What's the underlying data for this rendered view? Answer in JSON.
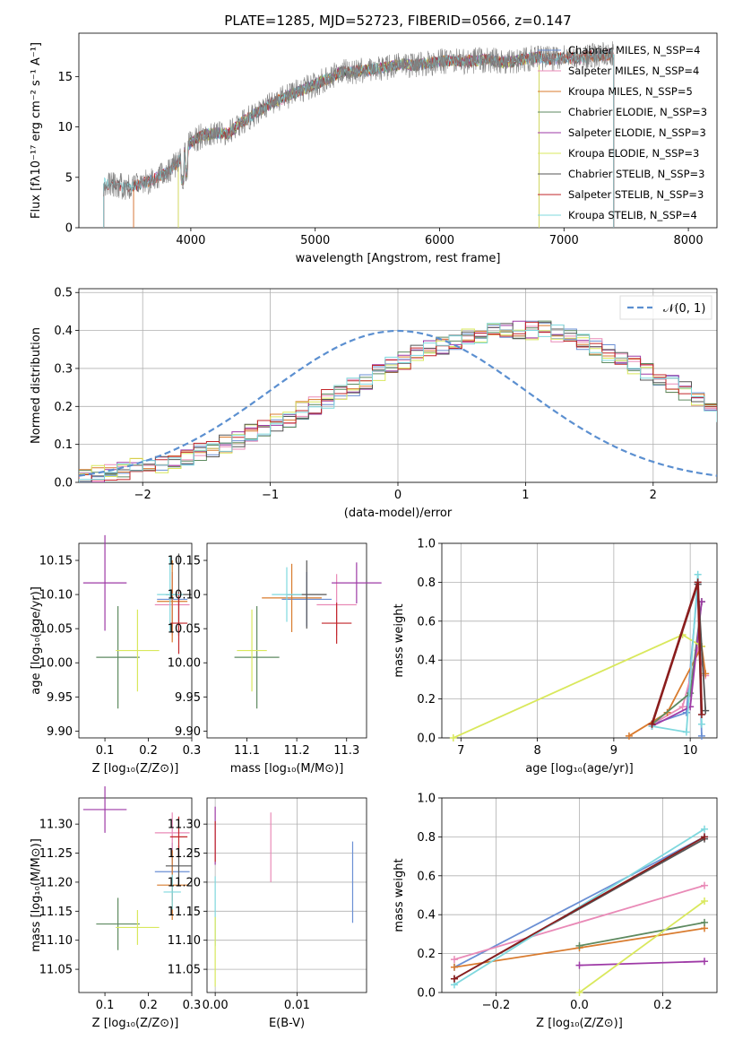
{
  "chart_data": [
    {
      "type": "line",
      "title": "PLATE=1285, MJD=52723, FIBERID=0566, z=0.147",
      "xlabel": "wavelength [Angstrom, rest frame]",
      "ylabel": "Flux [fλ10⁻¹⁷ erg cm⁻² s⁻¹ A⁻¹]",
      "xlim": [
        3100,
        8230
      ],
      "ylim": [
        0,
        19.3
      ],
      "xticks": [
        4000,
        5000,
        6000,
        7000,
        8000
      ],
      "yticks": [
        0,
        5,
        10,
        15
      ],
      "data_color": "#808080",
      "spectrum_x": [
        3300,
        3400,
        3500,
        3600,
        3700,
        3800,
        3900,
        4000,
        4100,
        4200,
        4300,
        4400,
        4500,
        4600,
        4700,
        4800,
        4900,
        5000,
        5100,
        5200,
        5300,
        5400,
        5500,
        5600,
        5700,
        5800,
        5900,
        6000,
        6100,
        6200,
        6300,
        6400,
        6500,
        6600,
        6700,
        6800,
        6900,
        7000,
        7100,
        7200,
        7300,
        7400
      ],
      "spectrum_y": [
        4.4,
        4.2,
        4.0,
        4.3,
        4.8,
        5.4,
        6.5,
        8.5,
        9.2,
        9.4,
        9.3,
        10.4,
        11.2,
        12.0,
        12.6,
        13.2,
        13.7,
        14.2,
        14.8,
        15.4,
        15.5,
        15.6,
        15.8,
        16.0,
        16.2,
        16.1,
        16.3,
        16.5,
        16.6,
        16.5,
        16.6,
        16.7,
        16.4,
        16.5,
        16.8,
        16.9,
        16.7,
        16.9,
        16.8,
        17.0,
        17.1,
        17.2
      ],
      "series": [
        {
          "name": "Chabrier MILES, N_SSP=4",
          "color": "#6a8fd4",
          "xmin": 3540,
          "xmax": 7400
        },
        {
          "name": "Salpeter MILES, N_SSP=4",
          "color": "#e98ab7",
          "xmin": 3540,
          "xmax": 7400
        },
        {
          "name": "Kroupa MILES, N_SSP=5",
          "color": "#d97b2e",
          "xmin": 3540,
          "xmax": 7400
        },
        {
          "name": "Chabrier ELODIE, N_SSP=3",
          "color": "#5e8a60",
          "xmin": 3900,
          "xmax": 6800
        },
        {
          "name": "Salpeter ELODIE, N_SSP=3",
          "color": "#9e3aa6",
          "xmin": 3900,
          "xmax": 6800
        },
        {
          "name": "Kroupa ELODIE, N_SSP=3",
          "color": "#d9e85c",
          "xmin": 3900,
          "xmax": 6800
        },
        {
          "name": "Chabrier STELIB, N_SSP=3",
          "color": "#555555",
          "xmin": 3300,
          "xmax": 7400
        },
        {
          "name": "Salpeter STELIB, N_SSP=3",
          "color": "#c2262a",
          "xmin": 3300,
          "xmax": 7400
        },
        {
          "name": "Kroupa STELIB, N_SSP=4",
          "color": "#7fd8de",
          "xmin": 3300,
          "xmax": 7400
        }
      ]
    },
    {
      "type": "histogram",
      "xlabel": "(data-model)/error",
      "ylabel": "Normed distribution",
      "xlim": [
        -2.5,
        2.5
      ],
      "ylim": [
        0,
        0.51
      ],
      "xticks": [
        -2,
        -1,
        0,
        1,
        2
      ],
      "yticks": [
        0.0,
        0.1,
        0.2,
        0.3,
        0.4,
        0.5
      ],
      "legend": "𝒩(0, 1)",
      "gauss_color": "#5b8fd0",
      "bin_width": 0.1,
      "bin_start": -2.5,
      "heights": [
        0.02,
        0.02,
        0.03,
        0.03,
        0.04,
        0.05,
        0.05,
        0.06,
        0.07,
        0.08,
        0.09,
        0.1,
        0.11,
        0.13,
        0.14,
        0.16,
        0.17,
        0.19,
        0.2,
        0.22,
        0.24,
        0.25,
        0.27,
        0.29,
        0.31,
        0.32,
        0.34,
        0.35,
        0.36,
        0.37,
        0.38,
        0.39,
        0.4,
        0.4,
        0.4,
        0.4,
        0.4,
        0.39,
        0.38,
        0.37,
        0.36,
        0.34,
        0.33,
        0.31,
        0.29,
        0.27,
        0.26,
        0.24,
        0.22,
        0.2,
        0.18,
        0.16,
        0.15,
        0.13,
        0.12,
        0.1,
        0.09,
        0.08,
        0.07,
        0.06,
        0.05,
        0.04,
        0.04,
        0.03,
        0.03,
        0.03,
        0.03,
        0.03,
        0.03,
        0.03
      ]
    },
    {
      "type": "scatter",
      "xlabel": "Z [log₁₀(Z/Z⊙)]",
      "ylabel": "age  [log₁₀(age/yr)]",
      "xlim": [
        0.04,
        0.3
      ],
      "ylim": [
        9.89,
        10.175
      ],
      "xticks": [
        0.1,
        0.2,
        0.3
      ],
      "yticks": [
        9.9,
        9.95,
        10.0,
        10.05,
        10.1,
        10.15
      ],
      "points": [
        {
          "x": 0.255,
          "y": 10.093,
          "ex": 0.035,
          "ey": 0.04,
          "color": "#6a8fd4"
        },
        {
          "x": 0.255,
          "y": 10.085,
          "ex": 0.04,
          "ey": 0.045,
          "color": "#e98ab7"
        },
        {
          "x": 0.255,
          "y": 10.09,
          "ex": 0.035,
          "ey": 0.06,
          "color": "#d97b2e"
        },
        {
          "x": 0.13,
          "y": 10.008,
          "ex": 0.05,
          "ey": 0.075,
          "color": "#5e8a60"
        },
        {
          "x": 0.1,
          "y": 10.117,
          "ex": 0.05,
          "ey": 0.07,
          "color": "#9e3aa6"
        },
        {
          "x": 0.175,
          "y": 10.018,
          "ex": 0.05,
          "ey": 0.06,
          "color": "#d9e85c"
        },
        {
          "x": 0.27,
          "y": 10.1,
          "ex": 0.03,
          "ey": 0.06,
          "color": "#555555"
        },
        {
          "x": 0.27,
          "y": 10.058,
          "ex": 0.02,
          "ey": 0.045,
          "color": "#c2262a"
        },
        {
          "x": 0.25,
          "y": 10.1,
          "ex": 0.03,
          "ey": 0.055,
          "color": "#7fd8de"
        }
      ]
    },
    {
      "type": "scatter",
      "xlabel": "mass [log₁₀(M/M⊙)]",
      "xlim": [
        11.02,
        11.34
      ],
      "ylim": [
        9.89,
        10.175
      ],
      "xticks": [
        11.1,
        11.2,
        11.3
      ],
      "yticks": [
        9.9,
        9.95,
        10.0,
        10.05,
        10.1,
        10.15
      ],
      "points": [
        {
          "x": 11.22,
          "y": 10.093,
          "ex": 0.05,
          "ey": 0.04,
          "color": "#6a8fd4"
        },
        {
          "x": 11.28,
          "y": 10.085,
          "ex": 0.04,
          "ey": 0.045,
          "color": "#e98ab7"
        },
        {
          "x": 11.19,
          "y": 10.095,
          "ex": 0.06,
          "ey": 0.05,
          "color": "#d97b2e"
        },
        {
          "x": 11.12,
          "y": 10.008,
          "ex": 0.045,
          "ey": 0.075,
          "color": "#5e8a60"
        },
        {
          "x": 11.32,
          "y": 10.117,
          "ex": 0.05,
          "ey": 0.03,
          "color": "#9e3aa6"
        },
        {
          "x": 11.11,
          "y": 10.018,
          "ex": 0.03,
          "ey": 0.06,
          "color": "#d9e85c"
        },
        {
          "x": 11.22,
          "y": 10.1,
          "ex": 0.04,
          "ey": 0.05,
          "color": "#555555"
        },
        {
          "x": 11.28,
          "y": 10.058,
          "ex": 0.03,
          "ey": 0.03,
          "color": "#c2262a"
        },
        {
          "x": 11.18,
          "y": 10.1,
          "ex": 0.03,
          "ey": 0.04,
          "color": "#7fd8de"
        }
      ]
    },
    {
      "type": "line",
      "xlabel": "age  [log₁₀(age/yr)]",
      "ylabel": "mass weight",
      "xlim": [
        6.75,
        10.35
      ],
      "ylim": [
        0,
        1.0
      ],
      "xticks": [
        7,
        8,
        9,
        10
      ],
      "yticks": [
        0.0,
        0.2,
        0.4,
        0.6,
        0.8,
        1.0
      ],
      "series": [
        {
          "color": "#6a8fd4",
          "x": [
            9.5,
            9.95,
            10.1,
            10.15
          ],
          "y": [
            0.07,
            0.13,
            0.79,
            0.01
          ]
        },
        {
          "color": "#e98ab7",
          "x": [
            9.5,
            9.9,
            10.1,
            10.2
          ],
          "y": [
            0.07,
            0.16,
            0.45,
            0.32
          ]
        },
        {
          "color": "#d97b2e",
          "x": [
            9.2,
            9.7,
            10.15,
            10.2
          ],
          "y": [
            0.01,
            0.13,
            0.47,
            0.33
          ]
        },
        {
          "color": "#5e8a60",
          "x": [
            9.5,
            10.0,
            10.15
          ],
          "y": [
            0.07,
            0.23,
            0.7
          ]
        },
        {
          "color": "#9e3aa6",
          "x": [
            9.5,
            10.0,
            10.15
          ],
          "y": [
            0.06,
            0.16,
            0.7
          ]
        },
        {
          "color": "#d9e85c",
          "x": [
            6.9,
            9.9,
            10.15
          ],
          "y": [
            0.0,
            0.53,
            0.47
          ]
        },
        {
          "color": "#555555",
          "x": [
            9.5,
            10.1,
            10.2
          ],
          "y": [
            0.07,
            0.79,
            0.14
          ]
        },
        {
          "color": "#7fd8de",
          "x": [
            9.5,
            9.95,
            10.1,
            10.15
          ],
          "y": [
            0.06,
            0.03,
            0.84,
            0.07
          ]
        },
        {
          "color": "#8b1d1d",
          "x": [
            9.5,
            10.1,
            10.15
          ],
          "y": [
            0.07,
            0.8,
            0.12
          ]
        }
      ]
    },
    {
      "type": "scatter",
      "xlabel": "Z [log₁₀(Z/Z⊙)]",
      "ylabel": "mass [log₁₀(M/M⊙)]",
      "xlim": [
        0.04,
        0.3
      ],
      "ylim": [
        11.01,
        11.345
      ],
      "xticks": [
        0.1,
        0.2,
        0.3
      ],
      "yticks": [
        11.05,
        11.1,
        11.15,
        11.2,
        11.25,
        11.3
      ],
      "points": [
        {
          "x": 0.255,
          "y": 11.218,
          "ex": 0.04,
          "ey": 0.05,
          "color": "#6a8fd4"
        },
        {
          "x": 0.255,
          "y": 11.285,
          "ex": 0.04,
          "ey": 0.035,
          "color": "#e98ab7"
        },
        {
          "x": 0.255,
          "y": 11.195,
          "ex": 0.035,
          "ey": 0.06,
          "color": "#d97b2e"
        },
        {
          "x": 0.13,
          "y": 11.128,
          "ex": 0.05,
          "ey": 0.045,
          "color": "#5e8a60"
        },
        {
          "x": 0.1,
          "y": 11.325,
          "ex": 0.05,
          "ey": 0.04,
          "color": "#9e3aa6"
        },
        {
          "x": 0.175,
          "y": 11.122,
          "ex": 0.05,
          "ey": 0.03,
          "color": "#d9e85c"
        },
        {
          "x": 0.27,
          "y": 11.228,
          "ex": 0.03,
          "ey": 0.035,
          "color": "#555555"
        },
        {
          "x": 0.27,
          "y": 11.278,
          "ex": 0.02,
          "ey": 0.035,
          "color": "#c2262a"
        },
        {
          "x": 0.255,
          "y": 11.183,
          "ex": 0.02,
          "ey": 0.03,
          "color": "#7fd8de"
        }
      ]
    },
    {
      "type": "scatter",
      "xlabel": "E(B-V)",
      "xlim": [
        -0.001,
        0.0185
      ],
      "ylim": [
        11.01,
        11.345
      ],
      "xticks": [
        0.0,
        0.01
      ],
      "yticks": [
        11.05,
        11.1,
        11.15,
        11.2,
        11.25,
        11.3
      ],
      "points": [
        {
          "x": 0.0168,
          "y": 11.2,
          "ex": 0,
          "ey": 0.07,
          "color": "#6a8fd4"
        },
        {
          "x": 0.0068,
          "y": 11.26,
          "ex": 0,
          "ey": 0.06,
          "color": "#e98ab7"
        },
        {
          "x": 0.0,
          "y": 11.15,
          "ex": 0,
          "ey": 0.06,
          "color": "#7fd8de"
        },
        {
          "x": 0.0,
          "y": 11.28,
          "ex": 0,
          "ey": 0.05,
          "color": "#9e3aa6"
        },
        {
          "x": 0.0,
          "y": 11.27,
          "ex": 0,
          "ey": 0.035,
          "color": "#c2262a"
        },
        {
          "x": 0.0,
          "y": 11.08,
          "ex": 0,
          "ey": 0.06,
          "color": "#d9e85c"
        }
      ]
    },
    {
      "type": "line",
      "xlabel": "Z [log₁₀(Z/Z⊙)]",
      "ylabel": "mass weight",
      "xlim": [
        -0.33,
        0.33
      ],
      "ylim": [
        0,
        1.0
      ],
      "xticks": [
        -0.2,
        0.0,
        0.2
      ],
      "yticks": [
        0.0,
        0.2,
        0.4,
        0.6,
        0.8,
        1.0
      ],
      "series": [
        {
          "color": "#6a8fd4",
          "x": [
            -0.3,
            0.3
          ],
          "y": [
            0.13,
            0.8
          ]
        },
        {
          "color": "#e98ab7",
          "x": [
            -0.3,
            0.3
          ],
          "y": [
            0.17,
            0.55
          ]
        },
        {
          "color": "#d97b2e",
          "x": [
            -0.3,
            0.0,
            0.3
          ],
          "y": [
            0.13,
            0.23,
            0.33
          ]
        },
        {
          "color": "#5e8a60",
          "x": [
            0.0,
            0.3
          ],
          "y": [
            0.24,
            0.36
          ]
        },
        {
          "color": "#9e3aa6",
          "x": [
            0.0,
            0.3
          ],
          "y": [
            0.14,
            0.16
          ]
        },
        {
          "color": "#d9e85c",
          "x": [
            0.0,
            0.3
          ],
          "y": [
            0.0,
            0.47
          ]
        },
        {
          "color": "#555555",
          "x": [
            -0.3,
            0.3
          ],
          "y": [
            0.07,
            0.79
          ]
        },
        {
          "color": "#7fd8de",
          "x": [
            -0.3,
            0.3
          ],
          "y": [
            0.04,
            0.84
          ]
        },
        {
          "color": "#8b1d1d",
          "x": [
            -0.3,
            0.3
          ],
          "y": [
            0.07,
            0.8
          ]
        }
      ]
    }
  ]
}
